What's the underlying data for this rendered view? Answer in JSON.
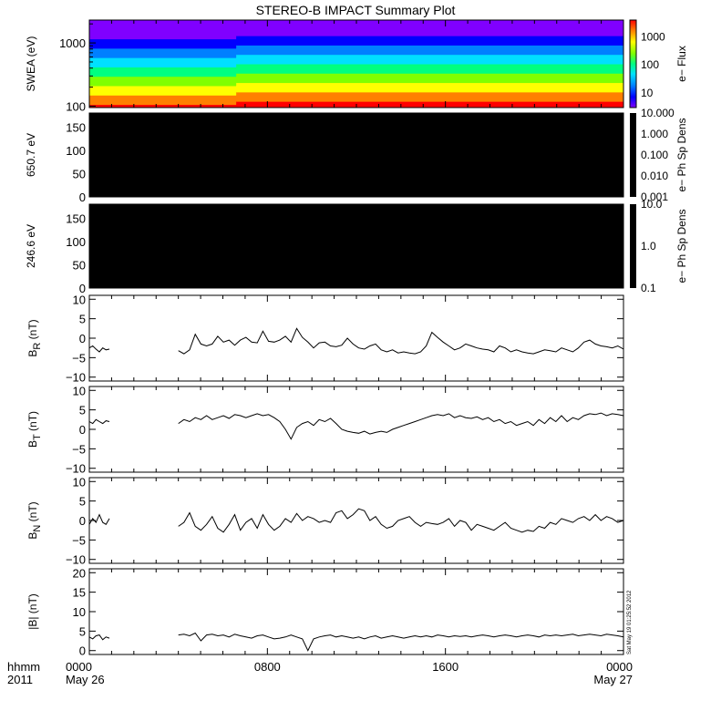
{
  "title": "STEREO-B IMPACT Summary Plot",
  "stamp": "Sat May 19 01:25:52 2012",
  "time_axis": {
    "label_row1": "hhmm",
    "label_row2": "2011",
    "range_hours": [
      0,
      24
    ],
    "ticks": [
      {
        "hour": 0,
        "label": "0000",
        "sublabel": "May 26"
      },
      {
        "hour": 8,
        "label": "0800",
        "sublabel": ""
      },
      {
        "hour": 16,
        "label": "1600",
        "sublabel": ""
      },
      {
        "hour": 24,
        "label": "0000",
        "sublabel": "May 27"
      }
    ]
  },
  "colors": {
    "frame": "#000000",
    "data": "#000000",
    "pad_fill": "#000000"
  },
  "chart_data": [
    {
      "type": "heatmap",
      "id": "swea",
      "ylabel": "SWEA (eV)",
      "yscale": "log",
      "ylim": [
        95,
        2300
      ],
      "yticks": [
        {
          "v": 100,
          "label": "100"
        },
        {
          "v": 1000,
          "label": "1000"
        }
      ],
      "colorbar_label": "e− Flux",
      "colorbar_scale": "log",
      "colorbar_range": [
        3,
        4000
      ],
      "colorbar_ticks": [
        {
          "v": 10,
          "label": "10"
        },
        {
          "v": 100,
          "label": "100"
        },
        {
          "v": 1000,
          "label": "1000"
        }
      ],
      "colormap": [
        "#8000ff",
        "#0000ff",
        "#0080ff",
        "#00e0ff",
        "#00ff80",
        "#80ff00",
        "#ffff00",
        "#ff8000",
        "#ff0000"
      ],
      "segments": [
        {
          "start_hour": 0,
          "end_hour": 6.6,
          "flux_at_100eV": 3000
        },
        {
          "start_hour": 6.6,
          "end_hour": 24,
          "flux_at_100eV": 4000
        }
      ]
    },
    {
      "type": "heatmap",
      "id": "pad650",
      "ylabel": "650.7 eV",
      "ylim": [
        0,
        180
      ],
      "yticks": [
        {
          "v": 0,
          "label": "0"
        },
        {
          "v": 50,
          "label": "50"
        },
        {
          "v": 100,
          "label": "100"
        },
        {
          "v": 150,
          "label": "150"
        }
      ],
      "colorbar_label": "e− Ph Sp Dens",
      "colorbar_scale": "log",
      "colorbar_range": [
        0.001,
        10
      ],
      "colorbar_ticks": [
        {
          "v": 10,
          "label": "10.000"
        },
        {
          "v": 1,
          "label": "1.000"
        },
        {
          "v": 0.1,
          "label": "0.100"
        },
        {
          "v": 0.01,
          "label": "0.010"
        },
        {
          "v": 0.001,
          "label": "0.001"
        }
      ]
    },
    {
      "type": "heatmap",
      "id": "pad246",
      "ylabel": "246.6 eV",
      "ylim": [
        0,
        180
      ],
      "yticks": [
        {
          "v": 0,
          "label": "0"
        },
        {
          "v": 50,
          "label": "50"
        },
        {
          "v": 100,
          "label": "100"
        },
        {
          "v": 150,
          "label": "150"
        }
      ],
      "colorbar_label": "e− Ph Sp Dens",
      "colorbar_scale": "log",
      "colorbar_range": [
        0.1,
        10
      ],
      "colorbar_ticks": [
        {
          "v": 10,
          "label": "10.0"
        },
        {
          "v": 1,
          "label": "1.0"
        },
        {
          "v": 0.1,
          "label": "0.1"
        }
      ]
    },
    {
      "type": "line",
      "id": "br",
      "ylabel_main": "B",
      "ylabel_sub": "R",
      "ylabel_unit": " (nT)",
      "ylim": [
        -11,
        11
      ],
      "yticks": [
        {
          "v": -10,
          "label": "−10"
        },
        {
          "v": -5,
          "label": "−5"
        },
        {
          "v": 0,
          "label": "0"
        },
        {
          "v": 5,
          "label": "5"
        },
        {
          "v": 10,
          "label": "10"
        }
      ],
      "segments": [
        {
          "start_hour": 0.0,
          "end_hour": 0.9,
          "y": [
            -2.5,
            -2.0,
            -2.8,
            -3.5,
            -2.5,
            -3.0,
            -2.8
          ]
        },
        {
          "start_hour": 4.0,
          "end_hour": 24.0,
          "y": [
            -3.2,
            -4.0,
            -3.0,
            1.0,
            -1.5,
            -2.0,
            -1.5,
            0.5,
            -1.0,
            -0.5,
            -1.8,
            -0.5,
            0.2,
            -1.0,
            -1.2,
            1.8,
            -0.8,
            -1.0,
            -0.5,
            0.5,
            -1.0,
            2.5,
            0.2,
            -1.0,
            -2.5,
            -1.2,
            -1.0,
            -2.0,
            -2.2,
            -1.8,
            0.0,
            -1.5,
            -2.5,
            -2.8,
            -2.0,
            -1.5,
            -3.0,
            -3.5,
            -3.0,
            -3.8,
            -3.5,
            -3.8,
            -4.0,
            -3.5,
            -2.0,
            1.5,
            0.2,
            -1.0,
            -2.0,
            -3.0,
            -2.5,
            -1.5,
            -2.0,
            -2.5,
            -2.8,
            -3.0,
            -3.5,
            -2.0,
            -2.5,
            -3.5,
            -3.0,
            -3.5,
            -3.8,
            -4.0,
            -3.5,
            -3.0,
            -3.2,
            -3.5,
            -2.5,
            -3.0,
            -3.5,
            -2.5,
            -1.0,
            -0.5,
            -1.5,
            -2.0,
            -2.2,
            -2.5,
            -2.0,
            -2.8
          ]
        }
      ]
    },
    {
      "type": "line",
      "id": "bt",
      "ylabel_main": "B",
      "ylabel_sub": "T",
      "ylabel_unit": " (nT)",
      "ylim": [
        -11,
        11
      ],
      "yticks": [
        {
          "v": -10,
          "label": "−10"
        },
        {
          "v": -5,
          "label": "−5"
        },
        {
          "v": 0,
          "label": "0"
        },
        {
          "v": 5,
          "label": "5"
        },
        {
          "v": 10,
          "label": "10"
        }
      ],
      "segments": [
        {
          "start_hour": 0.0,
          "end_hour": 0.9,
          "y": [
            2.0,
            1.5,
            2.5,
            2.0,
            1.5,
            2.2,
            2.0
          ]
        },
        {
          "start_hour": 4.0,
          "end_hour": 24.0,
          "y": [
            1.5,
            2.5,
            2.0,
            3.0,
            2.5,
            3.5,
            2.5,
            3.0,
            3.5,
            2.8,
            3.8,
            3.5,
            3.0,
            3.5,
            4.0,
            3.5,
            3.8,
            3.0,
            2.0,
            0.0,
            -2.5,
            0.5,
            1.5,
            2.0,
            1.0,
            2.5,
            2.0,
            2.8,
            1.5,
            0.0,
            -0.5,
            -0.8,
            -1.0,
            -0.5,
            -1.2,
            -0.8,
            -0.5,
            -0.8,
            0.0,
            0.5,
            1.0,
            1.5,
            2.0,
            2.5,
            3.0,
            3.5,
            3.8,
            3.5,
            4.0,
            3.0,
            3.5,
            3.0,
            2.8,
            3.2,
            2.5,
            3.0,
            2.0,
            2.5,
            1.5,
            2.0,
            1.0,
            1.5,
            2.0,
            1.0,
            2.5,
            1.5,
            3.0,
            2.0,
            3.5,
            2.0,
            3.0,
            2.5,
            3.5,
            4.0,
            3.8,
            4.2,
            3.5,
            4.0,
            3.8,
            3.5
          ]
        }
      ]
    },
    {
      "type": "line",
      "id": "bn",
      "ylabel_main": "B",
      "ylabel_sub": "N",
      "ylabel_unit": " (nT)",
      "ylim": [
        -11,
        11
      ],
      "yticks": [
        {
          "v": -10,
          "label": "−10"
        },
        {
          "v": -5,
          "label": "−5"
        },
        {
          "v": 0,
          "label": "0"
        },
        {
          "v": 5,
          "label": "5"
        },
        {
          "v": 10,
          "label": "10"
        }
      ],
      "segments": [
        {
          "start_hour": 0.0,
          "end_hour": 0.9,
          "y": [
            -1.0,
            0.5,
            -0.5,
            1.5,
            -0.5,
            -1.0,
            0.5
          ]
        },
        {
          "start_hour": 4.0,
          "end_hour": 24.0,
          "y": [
            -1.5,
            -0.5,
            2.0,
            -1.5,
            -2.5,
            -1.0,
            1.0,
            -2.0,
            -3.0,
            -1.0,
            1.5,
            -2.5,
            -0.5,
            0.5,
            -2.0,
            1.5,
            -1.0,
            -2.5,
            -1.5,
            0.5,
            -0.5,
            1.8,
            0.0,
            1.0,
            0.5,
            -0.5,
            0.0,
            -0.5,
            2.0,
            2.5,
            0.5,
            1.5,
            3.0,
            2.5,
            0.0,
            1.0,
            -1.0,
            -2.0,
            -1.5,
            0.0,
            0.5,
            1.0,
            -0.5,
            -1.5,
            -0.5,
            -0.8,
            -1.0,
            -0.5,
            0.5,
            -1.5,
            0.0,
            -0.5,
            -2.5,
            -1.0,
            -1.5,
            -2.0,
            -2.5,
            -1.5,
            -0.5,
            -2.0,
            -2.5,
            -3.0,
            -2.5,
            -2.8,
            -1.5,
            -2.0,
            -0.5,
            -1.0,
            0.5,
            0.0,
            -0.5,
            0.5,
            1.0,
            0.0,
            1.5,
            0.0,
            1.0,
            0.5,
            -0.5,
            0.0
          ]
        }
      ]
    },
    {
      "type": "line",
      "id": "bmag",
      "ylabel_main": "|B|",
      "ylabel_sub": "",
      "ylabel_unit": " (nT)",
      "ylim": [
        -1,
        21
      ],
      "yticks": [
        {
          "v": 0,
          "label": "0"
        },
        {
          "v": 5,
          "label": "5"
        },
        {
          "v": 10,
          "label": "10"
        },
        {
          "v": 15,
          "label": "15"
        },
        {
          "v": 20,
          "label": "20"
        }
      ],
      "segments": [
        {
          "start_hour": 0.0,
          "end_hour": 0.9,
          "y": [
            3.5,
            3.0,
            3.8,
            4.0,
            2.8,
            3.5,
            3.2
          ]
        },
        {
          "start_hour": 4.0,
          "end_hour": 24.0,
          "y": [
            4.0,
            4.2,
            3.8,
            4.5,
            2.5,
            4.0,
            4.2,
            3.8,
            4.0,
            3.5,
            4.2,
            3.8,
            3.5,
            3.2,
            3.8,
            4.0,
            3.5,
            3.0,
            3.2,
            3.5,
            4.0,
            3.5,
            3.0,
            0.0,
            3.0,
            3.5,
            3.8,
            4.0,
            3.5,
            3.8,
            3.5,
            3.2,
            3.5,
            3.0,
            3.5,
            3.8,
            3.2,
            3.5,
            3.8,
            3.5,
            3.2,
            3.5,
            3.8,
            3.5,
            3.8,
            3.5,
            4.0,
            3.8,
            3.5,
            3.8,
            3.6,
            3.8,
            3.5,
            3.8,
            4.0,
            3.8,
            3.5,
            3.8,
            4.0,
            3.8,
            3.5,
            3.8,
            4.0,
            3.8,
            3.5,
            4.0,
            3.8,
            4.0,
            3.8,
            4.0,
            4.2,
            3.8,
            4.0,
            4.2,
            4.0,
            3.8,
            4.2,
            4.0,
            3.8,
            3.5
          ]
        }
      ]
    }
  ]
}
